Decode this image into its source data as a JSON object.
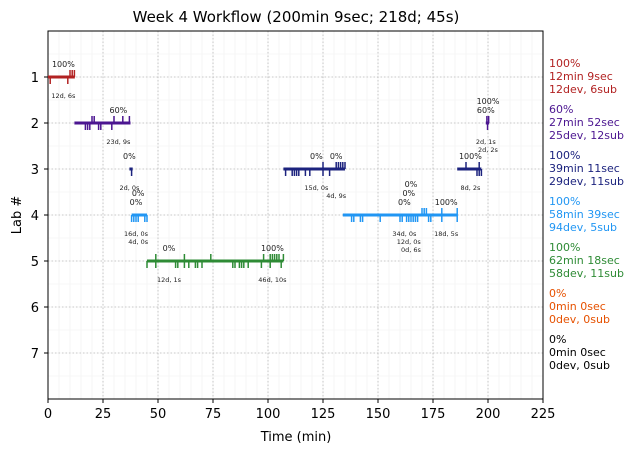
{
  "chart_data": {
    "type": "timeline",
    "title": "Week 4 Workflow (200min 9sec; 218d; 45s)",
    "xlabel": "Time (min)",
    "ylabel": "Lab #",
    "xlim": [
      0,
      225
    ],
    "ylim": [
      8,
      0
    ],
    "xticks": [
      0,
      25,
      50,
      75,
      100,
      125,
      150,
      175,
      200,
      225
    ],
    "yticks": [
      1,
      2,
      3,
      4,
      5,
      6,
      7
    ],
    "grid": true,
    "labs": [
      {
        "lab": 1,
        "color": "#b22222",
        "summary": [
          "100%",
          "12min 9sec",
          "12dev, 6sub"
        ],
        "segments": [
          {
            "start": 0,
            "end": 12.2,
            "up": [
              10,
              11,
              12
            ],
            "down": [
              1,
              9
            ]
          }
        ],
        "annotations": [
          {
            "x": 7,
            "pct": "100%",
            "info": "12d, 6s"
          }
        ]
      },
      {
        "lab": 2,
        "color": "#4b1590",
        "summary": [
          "60%",
          "27min 52sec",
          "25dev, 12sub"
        ],
        "segments": [
          {
            "start": 12,
            "end": 37.5,
            "up": [
              20,
              21,
              30,
              34,
              37
            ],
            "down": [
              17,
              18,
              19,
              23,
              24,
              29
            ]
          },
          {
            "start": 199,
            "end": 200.5,
            "up": [
              199.5,
              200.3
            ],
            "down": [
              199.8
            ]
          }
        ],
        "annotations": [
          {
            "x": 32,
            "pct": "60%",
            "info": "23d, 9s"
          },
          {
            "x": 199,
            "pct": "60%",
            "info": "2d, 1s"
          },
          {
            "x": 200,
            "pct": "100%",
            "info": "2d, 2s"
          }
        ]
      },
      {
        "lab": 3,
        "color": "#1c237e",
        "summary": [
          "100%",
          "39min 11sec",
          "29dev, 11sub"
        ],
        "segments": [
          {
            "start": 37,
            "end": 38.5,
            "up": [],
            "down": [
              38
            ]
          },
          {
            "start": 107,
            "end": 135,
            "up": [
              125,
              131,
              132,
              133,
              134,
              135
            ],
            "down": [
              108,
              111,
              112,
              113,
              114,
              117,
              119,
              125,
              128
            ]
          },
          {
            "start": 186,
            "end": 197,
            "up": [
              190,
              196
            ],
            "down": [
              195,
              196,
              197
            ]
          }
        ],
        "annotations": [
          {
            "x": 37,
            "pct": "0%",
            "info": "2d, 0s"
          },
          {
            "x": 122,
            "pct": "0%",
            "info": "15d, 0s"
          },
          {
            "x": 131,
            "pct": "0%",
            "info": "4d, 9s"
          },
          {
            "x": 192,
            "pct": "100%",
            "info": "8d, 2s"
          }
        ]
      },
      {
        "lab": 4,
        "color": "#2196f3",
        "summary": [
          "100%",
          "58min 39sec",
          "94dev, 5sub"
        ],
        "segments": [
          {
            "start": 38,
            "end": 45,
            "up": [],
            "down": [
              38,
              39,
              40,
              41,
              44,
              45
            ]
          },
          {
            "start": 134,
            "end": 186,
            "up": [
              170,
              171,
              172,
              179,
              186
            ],
            "down": [
              138,
              139,
              142,
              143,
              151,
              160,
              161,
              163,
              164,
              165,
              166,
              167,
              168,
              173,
              174,
              179,
              186
            ]
          }
        ],
        "annotations": [
          {
            "x": 40,
            "pct": "0%",
            "info": "16d, 0s"
          },
          {
            "x": 41,
            "pct": "0%",
            "info": "4d, 0s"
          },
          {
            "x": 162,
            "pct": "0%",
            "info": "34d, 0s"
          },
          {
            "x": 164,
            "pct": "0%",
            "info": "12d, 0s"
          },
          {
            "x": 165,
            "pct": "0%",
            "info": "0d, 6s"
          },
          {
            "x": 181,
            "pct": "100%",
            "info": "18d, 5s"
          }
        ]
      },
      {
        "lab": 5,
        "color": "#2e8b35",
        "summary": [
          "100%",
          "62min 18sec",
          "58dev, 11sub"
        ],
        "segments": [
          {
            "start": 45,
            "end": 107,
            "up": [
              49,
              62,
              74,
              98,
              101,
              102,
              103,
              104,
              105,
              107
            ],
            "down": [
              45,
              49,
              58,
              59,
              62,
              64,
              67,
              68,
              70,
              84,
              85,
              87,
              88,
              89,
              91,
              97,
              101,
              106
            ]
          }
        ],
        "annotations": [
          {
            "x": 55,
            "pct": "0%",
            "info": "12d, 1s"
          },
          {
            "x": 102,
            "pct": "100%",
            "info": "46d, 10s"
          }
        ]
      },
      {
        "lab": 6,
        "color": "#e65100",
        "summary": [
          "0%",
          "0min 0sec",
          "0dev, 0sub"
        ],
        "segments": [],
        "annotations": []
      },
      {
        "lab": 7,
        "color": "#000000",
        "summary": [
          "0%",
          "0min 0sec",
          "0dev, 0sub"
        ],
        "segments": [],
        "annotations": []
      }
    ]
  }
}
